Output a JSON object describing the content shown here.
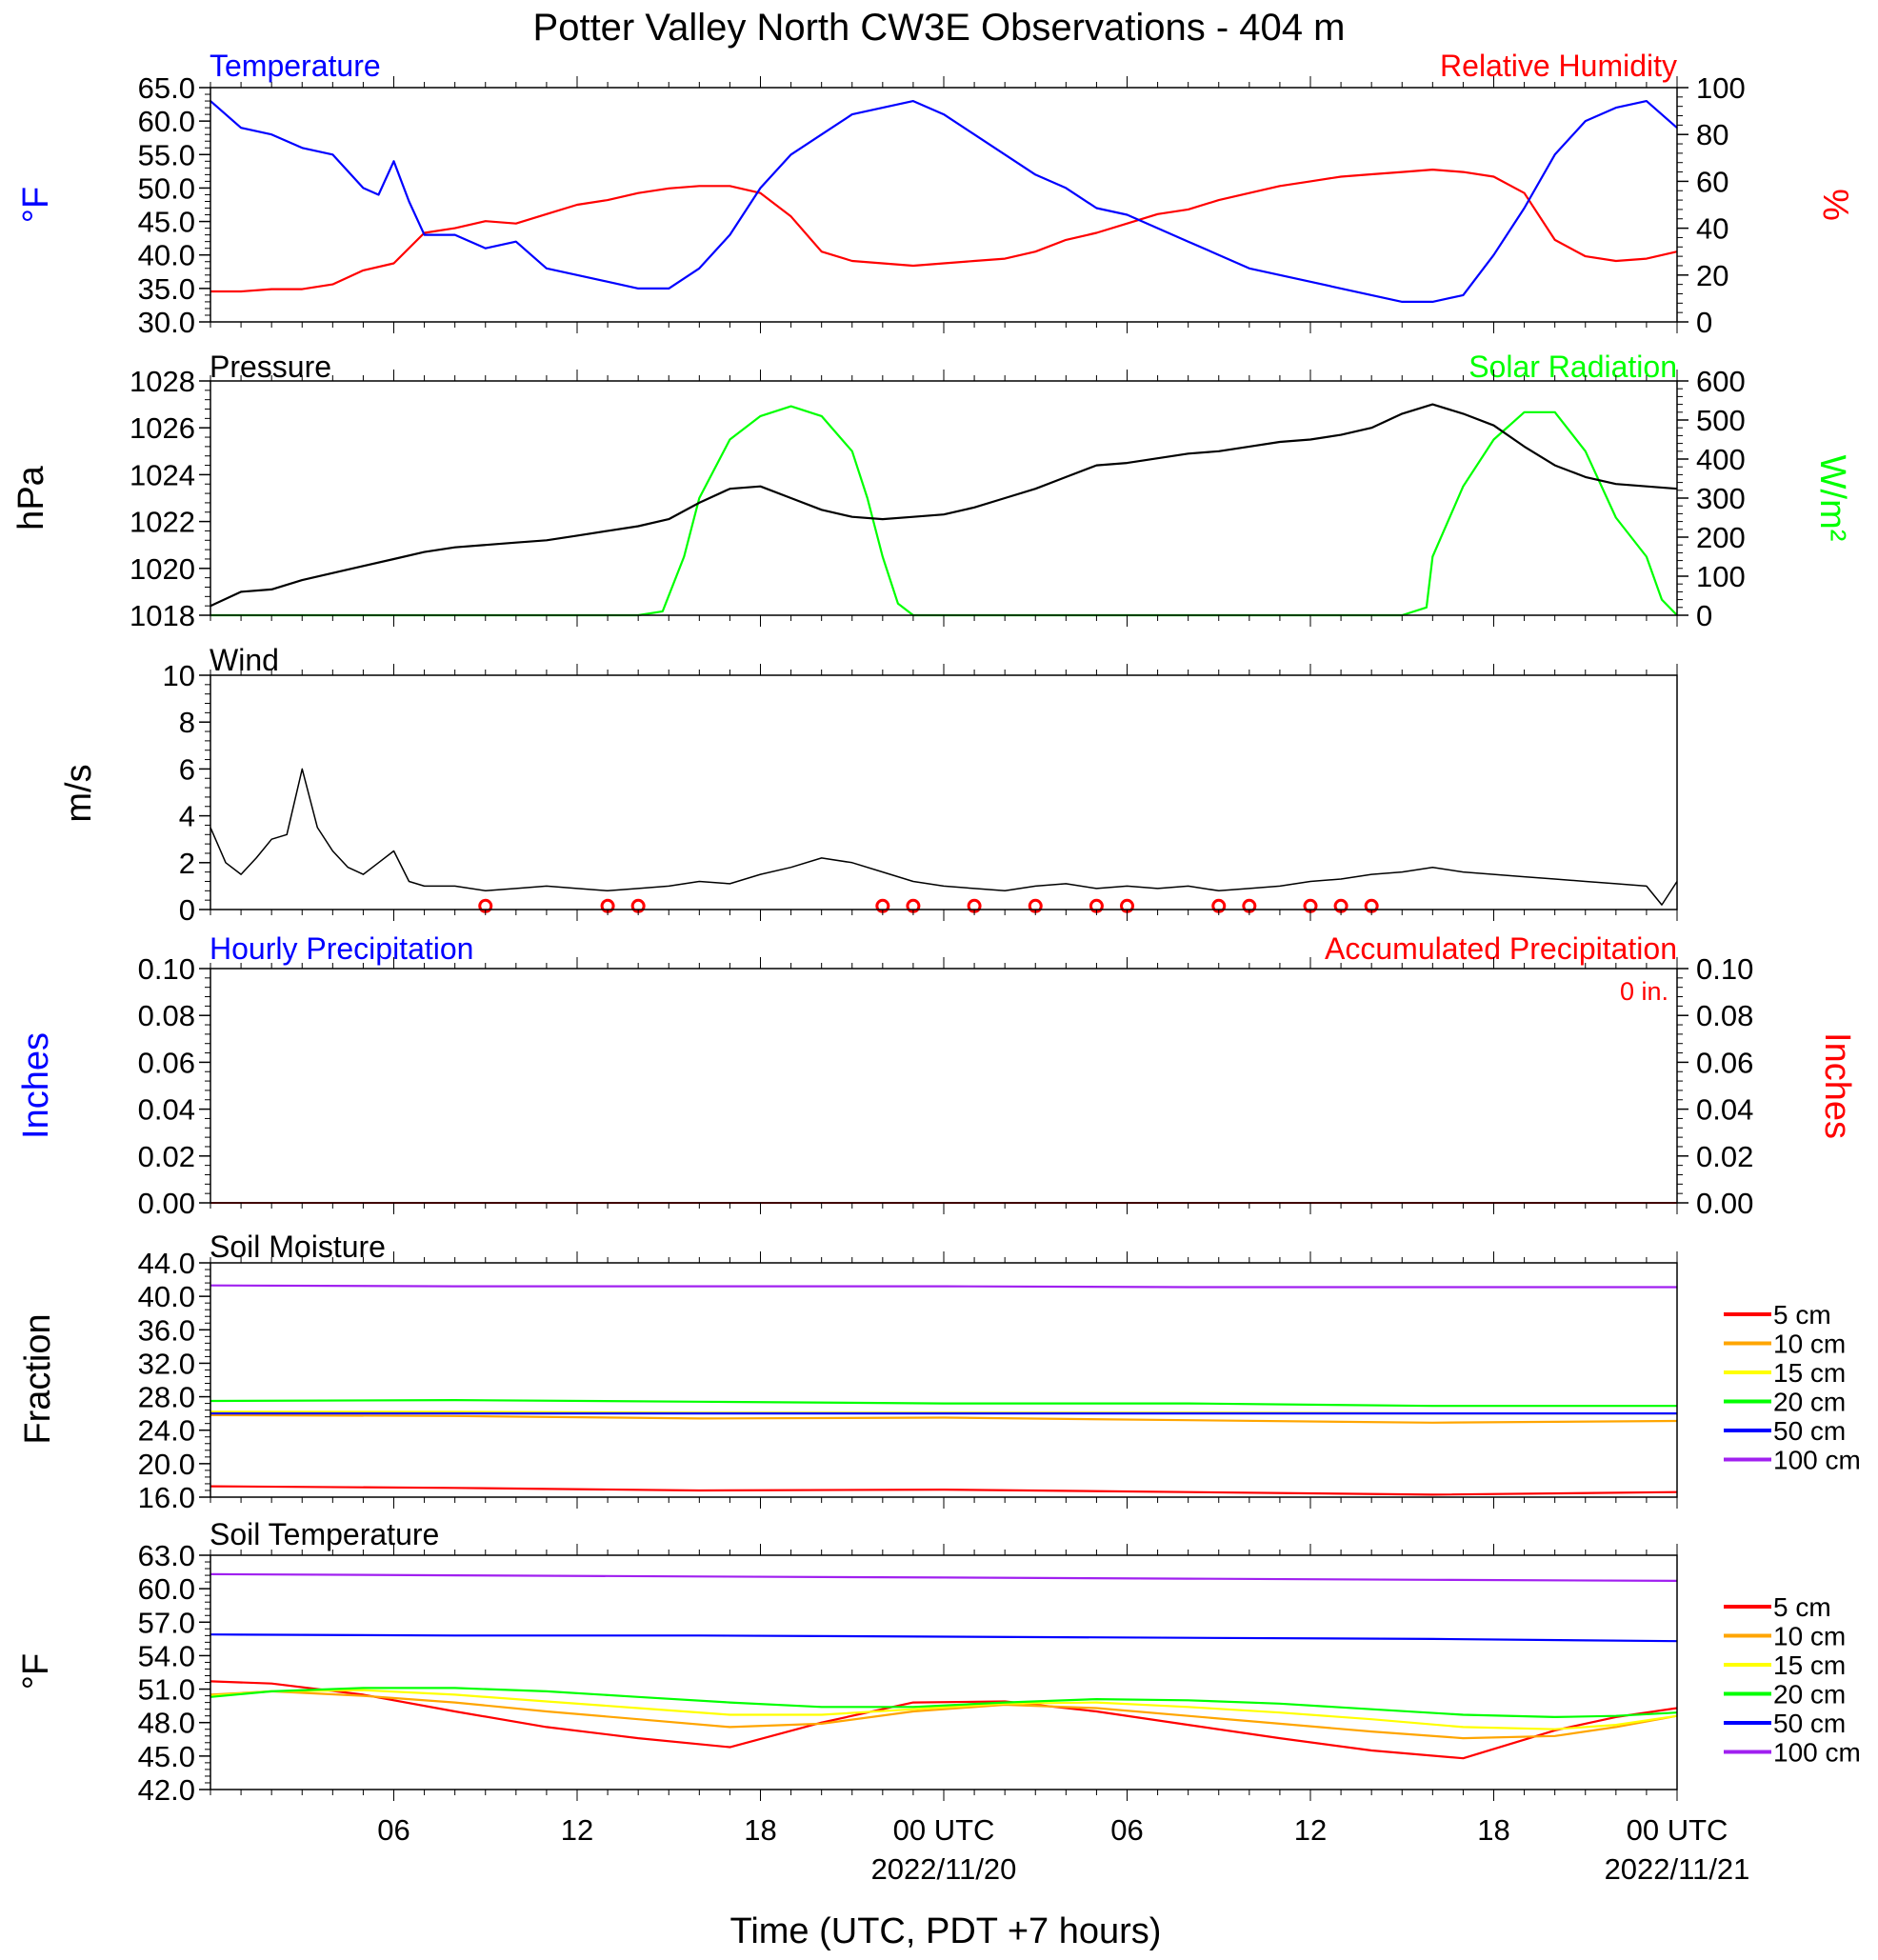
{
  "title": "Potter Valley North CW3E Observations - 404 m",
  "x_axis": {
    "ticks": [
      "06",
      "12",
      "18",
      "00 UTC",
      "06",
      "12",
      "18",
      "00 UTC"
    ],
    "dates": [
      "2022/11/20",
      "2022/11/21"
    ],
    "label": "Time (UTC, PDT +7 hours)",
    "start_hour": 1,
    "end_hour": 49
  },
  "colors": {
    "temperature": "#0000ff",
    "humidity": "#ff0000",
    "pressure": "#000000",
    "solar": "#00ff00",
    "wind": "#000000",
    "barb": "#ff0000",
    "hourly_precip": "#0000ff",
    "accum_precip": "#ff0000"
  },
  "chart_data": [
    {
      "type": "line",
      "panel": "temperature-humidity",
      "left_title": "Temperature",
      "right_title": "Relative Humidity",
      "ylabel_left": "°F",
      "ylabel_right": "%",
      "ylim_left": [
        30,
        65
      ],
      "yticks_left": [
        "65.0",
        "60.0",
        "55.0",
        "50.0",
        "45.0",
        "40.0",
        "35.0",
        "30.0"
      ],
      "ylim_right": [
        0,
        100
      ],
      "yticks_right": [
        "100",
        "80",
        "60",
        "40",
        "20",
        "0"
      ],
      "series": [
        {
          "name": "Temperature",
          "axis": "left",
          "x": [
            1,
            2,
            3,
            4,
            5,
            6,
            6.5,
            7,
            7.5,
            8,
            9,
            10,
            11,
            12,
            13,
            14,
            15,
            16,
            17,
            18,
            19,
            20,
            21,
            22,
            23,
            24,
            25,
            26,
            27,
            28,
            29,
            30,
            31,
            32,
            33,
            34,
            35,
            36,
            37,
            38,
            39,
            40,
            41,
            42,
            43,
            44,
            45,
            46,
            47,
            48,
            49
          ],
          "y": [
            63,
            59,
            58,
            56,
            55,
            50,
            49,
            54,
            48,
            43,
            43,
            41,
            42,
            38,
            37,
            36,
            35,
            35,
            38,
            43,
            50,
            55,
            58,
            61,
            62,
            63,
            61,
            58,
            55,
            52,
            50,
            47,
            46,
            44,
            42,
            40,
            38,
            37,
            36,
            35,
            34,
            33,
            33,
            34,
            40,
            47,
            55,
            60,
            62,
            63,
            59
          ]
        },
        {
          "name": "Relative Humidity",
          "axis": "right",
          "x": [
            1,
            2,
            3,
            4,
            5,
            6,
            7,
            8,
            9,
            10,
            11,
            12,
            13,
            14,
            15,
            16,
            17,
            18,
            19,
            20,
            21,
            22,
            23,
            24,
            25,
            26,
            27,
            28,
            29,
            30,
            31,
            32,
            33,
            34,
            35,
            36,
            37,
            38,
            39,
            40,
            41,
            42,
            43,
            44,
            45,
            46,
            47,
            48,
            49
          ],
          "y": [
            13,
            13,
            14,
            14,
            16,
            22,
            25,
            38,
            40,
            43,
            42,
            46,
            50,
            52,
            55,
            57,
            58,
            58,
            55,
            45,
            30,
            26,
            25,
            24,
            25,
            26,
            27,
            30,
            35,
            38,
            42,
            46,
            48,
            52,
            55,
            58,
            60,
            62,
            63,
            64,
            65,
            64,
            62,
            55,
            35,
            28,
            26,
            27,
            30
          ]
        }
      ]
    },
    {
      "type": "line",
      "panel": "pressure-solar",
      "left_title": "Pressure",
      "right_title": "Solar Radiation",
      "ylabel_left": "hPa",
      "ylabel_right": "W/m²",
      "ylim_left": [
        1018,
        1028
      ],
      "yticks_left": [
        "1028",
        "1026",
        "1024",
        "1022",
        "1020",
        "1018"
      ],
      "ylim_right": [
        0,
        600
      ],
      "yticks_right": [
        "600",
        "500",
        "400",
        "300",
        "200",
        "100",
        "0"
      ],
      "series": [
        {
          "name": "Pressure",
          "axis": "left",
          "x": [
            1,
            2,
            3,
            4,
            5,
            6,
            7,
            8,
            9,
            10,
            11,
            12,
            13,
            14,
            15,
            16,
            17,
            18,
            19,
            20,
            21,
            22,
            23,
            24,
            25,
            26,
            27,
            28,
            29,
            30,
            31,
            32,
            33,
            34,
            35,
            36,
            37,
            38,
            39,
            40,
            41,
            42,
            43,
            44,
            45,
            46,
            47,
            48,
            49
          ],
          "y": [
            1018.4,
            1019,
            1019.1,
            1019.5,
            1019.8,
            1020.1,
            1020.4,
            1020.7,
            1020.9,
            1021,
            1021.1,
            1021.2,
            1021.4,
            1021.6,
            1021.8,
            1022.1,
            1022.8,
            1023.4,
            1023.5,
            1023.0,
            1022.5,
            1022.2,
            1022.1,
            1022.2,
            1022.3,
            1022.6,
            1023.0,
            1023.4,
            1023.9,
            1024.4,
            1024.5,
            1024.7,
            1024.9,
            1025.0,
            1025.2,
            1025.4,
            1025.5,
            1025.7,
            1026.0,
            1026.6,
            1027.0,
            1026.6,
            1026.1,
            1025.2,
            1024.4,
            1023.9,
            1023.6,
            1023.5,
            1023.4
          ]
        },
        {
          "name": "Solar Radiation",
          "axis": "right",
          "x": [
            1,
            15,
            15.8,
            16.5,
            17,
            18,
            19,
            20,
            21,
            22,
            22.5,
            23,
            23.5,
            24,
            25,
            40,
            40.8,
            41,
            42,
            43,
            44,
            45,
            46,
            47,
            48,
            48.5,
            49
          ],
          "y": [
            0,
            0,
            10,
            150,
            300,
            450,
            510,
            535,
            510,
            420,
            300,
            150,
            30,
            0,
            0,
            0,
            20,
            150,
            330,
            450,
            520,
            520,
            420,
            250,
            150,
            40,
            0
          ]
        }
      ]
    },
    {
      "type": "line",
      "panel": "wind",
      "left_title": "Wind",
      "ylabel_left": "m/s",
      "ylim_left": [
        0,
        10
      ],
      "yticks_left": [
        "10",
        "8",
        "6",
        "4",
        "2",
        "0"
      ],
      "series": [
        {
          "name": "Wind",
          "axis": "left",
          "x": [
            1,
            1.5,
            2,
            2.5,
            3,
            3.5,
            4,
            4.5,
            5,
            5.5,
            6,
            6.5,
            7,
            7.5,
            8,
            9,
            10,
            11,
            12,
            13,
            14,
            15,
            16,
            17,
            18,
            19,
            20,
            21,
            22,
            23,
            24,
            25,
            26,
            27,
            28,
            29,
            30,
            31,
            32,
            33,
            34,
            35,
            36,
            37,
            38,
            39,
            40,
            41,
            42,
            43,
            44,
            45,
            46,
            47,
            48,
            48.5,
            49
          ],
          "y": [
            3.5,
            2.0,
            1.5,
            2.2,
            3.0,
            3.2,
            6.0,
            3.5,
            2.5,
            1.8,
            1.5,
            2.0,
            2.5,
            1.2,
            1.0,
            1.0,
            0.8,
            0.9,
            1.0,
            0.9,
            0.8,
            0.9,
            1.0,
            1.2,
            1.1,
            1.5,
            1.8,
            2.2,
            2.0,
            1.6,
            1.2,
            1.0,
            0.9,
            0.8,
            1.0,
            1.1,
            0.9,
            1.0,
            0.9,
            1.0,
            0.8,
            0.9,
            1.0,
            1.2,
            1.3,
            1.5,
            1.6,
            1.8,
            1.6,
            1.5,
            1.4,
            1.3,
            1.2,
            1.1,
            1.0,
            0.2,
            1.2
          ]
        }
      ],
      "calm_hours": [
        10,
        14,
        15,
        23,
        24,
        26,
        28,
        30,
        31,
        34,
        35,
        37,
        38,
        39
      ]
    },
    {
      "type": "line",
      "panel": "precipitation",
      "left_title": "Hourly Precipitation",
      "right_title": "Accumulated Precipitation",
      "annotation": "0 in.",
      "ylabel_left": "Inches",
      "ylabel_right": "Inches",
      "ylim_left": [
        0,
        0.1
      ],
      "yticks_left": [
        "0.10",
        "0.08",
        "0.06",
        "0.04",
        "0.02",
        "0.00"
      ],
      "ylim_right": [
        0,
        0.1
      ],
      "yticks_right": [
        "0.10",
        "0.08",
        "0.06",
        "0.04",
        "0.02",
        "0.00"
      ],
      "series": [
        {
          "name": "Hourly Precipitation",
          "axis": "left",
          "x": [
            1,
            49
          ],
          "y": [
            0,
            0
          ]
        },
        {
          "name": "Accumulated Precipitation",
          "axis": "right",
          "x": [
            1,
            49
          ],
          "y": [
            0,
            0
          ]
        }
      ]
    },
    {
      "type": "line",
      "panel": "soil-moisture",
      "left_title": "Soil Moisture",
      "ylabel_left": "Fraction",
      "ylim_left": [
        16,
        44
      ],
      "yticks_left": [
        "44.0",
        "40.0",
        "36.0",
        "32.0",
        "28.0",
        "24.0",
        "20.0",
        "16.0"
      ],
      "legend": "right",
      "series": [
        {
          "name": "5 cm",
          "color": "#ff0000",
          "x": [
            1,
            9,
            17,
            25,
            33,
            41,
            49
          ],
          "y": [
            17.3,
            17.1,
            16.8,
            16.9,
            16.6,
            16.3,
            16.6
          ]
        },
        {
          "name": "10 cm",
          "color": "#ffa500",
          "x": [
            1,
            9,
            17,
            25,
            33,
            41,
            49
          ],
          "y": [
            25.8,
            25.7,
            25.4,
            25.5,
            25.2,
            24.9,
            25.1
          ]
        },
        {
          "name": "15 cm",
          "color": "#ffff00",
          "x": [
            1,
            9,
            17,
            25,
            33,
            41,
            49
          ],
          "y": [
            26.2,
            26.2,
            26.1,
            26.1,
            26.1,
            26.0,
            26.0
          ]
        },
        {
          "name": "20 cm",
          "color": "#00ff00",
          "x": [
            1,
            9,
            17,
            25,
            33,
            41,
            49
          ],
          "y": [
            27.5,
            27.6,
            27.4,
            27.2,
            27.2,
            26.9,
            26.9
          ]
        },
        {
          "name": "50 cm",
          "color": "#0000ff",
          "x": [
            1,
            9,
            17,
            25,
            33,
            41,
            49
          ],
          "y": [
            26.0,
            26.0,
            26.0,
            26.0,
            26.0,
            26.0,
            26.0
          ]
        },
        {
          "name": "100 cm",
          "color": "#a020f0",
          "x": [
            1,
            9,
            17,
            25,
            33,
            41,
            49
          ],
          "y": [
            41.3,
            41.2,
            41.2,
            41.2,
            41.1,
            41.1,
            41.1
          ]
        }
      ]
    },
    {
      "type": "line",
      "panel": "soil-temperature",
      "left_title": "Soil Temperature",
      "ylabel_left": "°F",
      "ylim_left": [
        42,
        63
      ],
      "yticks_left": [
        "63.0",
        "60.0",
        "57.0",
        "54.0",
        "51.0",
        "48.0",
        "45.0",
        "42.0"
      ],
      "legend": "right",
      "series": [
        {
          "name": "5 cm",
          "color": "#ff0000",
          "x": [
            1,
            3,
            6,
            9,
            12,
            15,
            18,
            21,
            24,
            27,
            30,
            33,
            36,
            39,
            42,
            45,
            47,
            49
          ],
          "y": [
            51.7,
            51.5,
            50.5,
            49.0,
            47.6,
            46.6,
            45.8,
            48.0,
            49.8,
            49.9,
            49.0,
            47.8,
            46.6,
            45.5,
            44.8,
            47.3,
            48.5,
            49.3
          ]
        },
        {
          "name": "10 cm",
          "color": "#ffa500",
          "x": [
            1,
            3,
            6,
            9,
            12,
            15,
            18,
            21,
            24,
            27,
            30,
            33,
            36,
            39,
            42,
            45,
            47,
            49
          ],
          "y": [
            50.5,
            50.8,
            50.4,
            49.8,
            49.0,
            48.3,
            47.6,
            47.9,
            49.0,
            49.6,
            49.3,
            48.6,
            47.9,
            47.2,
            46.6,
            46.8,
            47.6,
            48.6
          ]
        },
        {
          "name": "15 cm",
          "color": "#ffff00",
          "x": [
            1,
            3,
            6,
            9,
            12,
            15,
            18,
            21,
            24,
            27,
            30,
            33,
            36,
            39,
            42,
            45,
            47,
            49
          ],
          "y": [
            50.4,
            50.8,
            50.9,
            50.5,
            49.9,
            49.3,
            48.7,
            48.7,
            49.2,
            49.7,
            49.8,
            49.4,
            48.9,
            48.3,
            47.6,
            47.4,
            47.8,
            48.6
          ]
        },
        {
          "name": "20 cm",
          "color": "#00ff00",
          "x": [
            1,
            3,
            6,
            9,
            12,
            15,
            18,
            21,
            24,
            27,
            30,
            33,
            36,
            39,
            42,
            45,
            47,
            49
          ],
          "y": [
            50.3,
            50.8,
            51.1,
            51.1,
            50.8,
            50.3,
            49.8,
            49.4,
            49.4,
            49.8,
            50.1,
            50.0,
            49.7,
            49.2,
            48.7,
            48.5,
            48.6,
            48.9
          ]
        },
        {
          "name": "50 cm",
          "color": "#0000ff",
          "x": [
            1,
            9,
            17,
            25,
            33,
            41,
            49
          ],
          "y": [
            55.9,
            55.8,
            55.8,
            55.7,
            55.6,
            55.5,
            55.3
          ]
        },
        {
          "name": "100 cm",
          "color": "#a020f0",
          "x": [
            1,
            9,
            17,
            25,
            33,
            41,
            49
          ],
          "y": [
            61.3,
            61.2,
            61.1,
            61.0,
            60.9,
            60.8,
            60.7
          ]
        }
      ]
    }
  ]
}
